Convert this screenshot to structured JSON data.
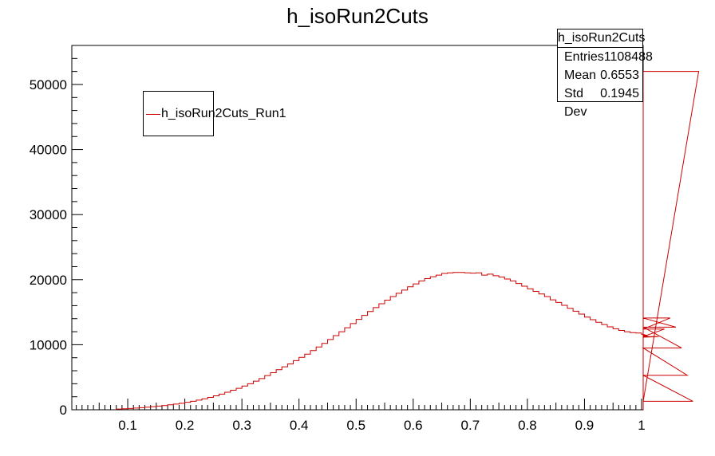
{
  "chart_data": {
    "type": "bar",
    "title": "h_isoRun2Cuts",
    "xlabel": "",
    "ylabel": "",
    "xlim": [
      0.0,
      1.0
    ],
    "ylim": [
      0,
      56000
    ],
    "bin_width": 0.01,
    "x_ticks": [
      "0.1",
      "0.2",
      "0.3",
      "0.4",
      "0.5",
      "0.6",
      "0.7",
      "0.8",
      "0.9",
      "1"
    ],
    "y_ticks": [
      "0",
      "10000",
      "20000",
      "30000",
      "40000",
      "50000"
    ],
    "series": [
      {
        "name": "h_isoRun2Cuts_Run1",
        "color": "#cc0000",
        "bin_edges_start": 0.08,
        "values": [
          100,
          150,
          200,
          260,
          320,
          400,
          480,
          560,
          650,
          760,
          880,
          1000,
          1150,
          1300,
          1480,
          1680,
          1900,
          2150,
          2400,
          2700,
          3000,
          3300,
          3650,
          4000,
          4400,
          4800,
          5250,
          5700,
          6150,
          6600,
          7050,
          7550,
          8050,
          8550,
          9100,
          9650,
          10200,
          10800,
          11400,
          12000,
          12600,
          13250,
          13900,
          14500,
          15100,
          15700,
          16300,
          16850,
          17400,
          17900,
          18400,
          18900,
          19350,
          19800,
          20150,
          20450,
          20700,
          20950,
          21050,
          21100,
          21100,
          21050,
          21000,
          21050,
          20700,
          20850,
          20600,
          20400,
          20100,
          19800,
          19400,
          19000,
          18600,
          18200,
          17800,
          17400,
          16900,
          16500,
          16050,
          15600,
          15150,
          14700,
          14250,
          13850,
          13450,
          13100,
          12750,
          12450,
          12200,
          12000,
          11850,
          11800,
          11600,
          11400,
          11150,
          11250,
          12400,
          14100,
          12700,
          9500,
          5300,
          1300,
          52000
        ]
      }
    ],
    "stats_box": {
      "title": "h_isoRun2Cuts",
      "rows": [
        {
          "label": "Entries",
          "value": "1108488"
        },
        {
          "label": "Mean",
          "value": "0.6553"
        },
        {
          "label": "Std Dev",
          "value": "0.1945"
        }
      ]
    },
    "legend": {
      "label": "h_isoRun2Cuts_Run1",
      "position": "top-left"
    }
  }
}
